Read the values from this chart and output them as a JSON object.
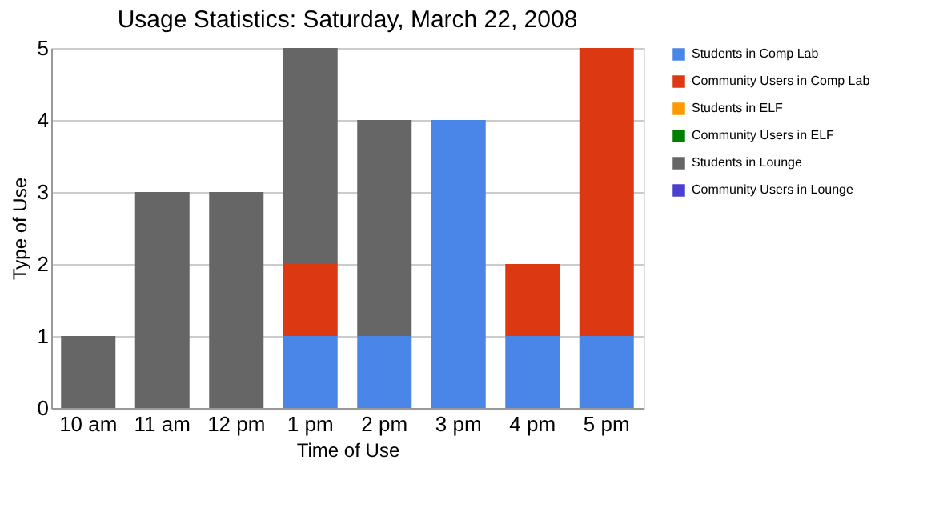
{
  "chart_data": {
    "type": "bar",
    "title": "Usage Statistics: Saturday, March 22, 2008",
    "xlabel": "Time of Use",
    "ylabel": "Type of Use",
    "categories": [
      "10 am",
      "11 am",
      "12 pm",
      "1 pm",
      "2 pm",
      "3 pm",
      "4 pm",
      "5 pm"
    ],
    "stacked": true,
    "ylim": [
      0,
      5
    ],
    "yticks": [
      0,
      1,
      2,
      3,
      4,
      5
    ],
    "grid": "y",
    "legend": "right",
    "series": [
      {
        "name": "Students in Comp Lab",
        "color": "#4a86e8",
        "values": [
          0,
          0,
          0,
          1,
          1,
          4,
          1,
          1
        ]
      },
      {
        "name": "Community Users in Comp Lab",
        "color": "#dc3912",
        "values": [
          0,
          0,
          0,
          1,
          0,
          0,
          1,
          4
        ]
      },
      {
        "name": "Students in ELF",
        "color": "#ff9900",
        "values": [
          0,
          0,
          0,
          0,
          0,
          0,
          0,
          0
        ]
      },
      {
        "name": "Community Users in ELF",
        "color": "#008000",
        "values": [
          0,
          0,
          0,
          0,
          0,
          0,
          0,
          0
        ]
      },
      {
        "name": "Students in Lounge",
        "color": "#666666",
        "values": [
          1,
          3,
          3,
          3,
          3,
          0,
          0,
          0
        ]
      },
      {
        "name": "Community Users in Lounge",
        "color": "#4b3fcf",
        "values": [
          0,
          0,
          0,
          0,
          0,
          0,
          0,
          0
        ]
      }
    ]
  }
}
